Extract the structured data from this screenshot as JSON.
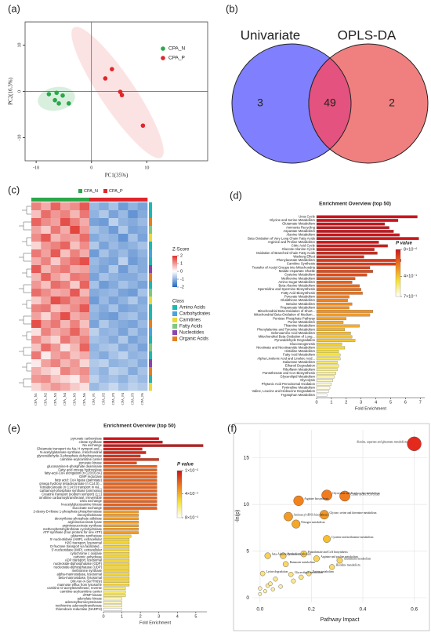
{
  "chart_data": [
    {
      "type": "scatter",
      "label": "(a)",
      "x_label": "PC1(35%)",
      "y_label": "PC2(16.3%)",
      "xlim": [
        -12,
        21
      ],
      "ylim": [
        -15,
        15
      ],
      "xticks": [
        -10,
        0,
        10
      ],
      "yticks": [
        -10,
        0,
        10
      ],
      "reference_lines": true,
      "series": [
        {
          "name": "CPA_N",
          "color": "#2aa84a",
          "x": [
            -7.7,
            -6.6,
            -5.9,
            -5.2,
            -4.1,
            -6.3
          ],
          "values": [
            -0.6,
            -1.9,
            -2.6,
            -0.9,
            -2.6,
            -0.3
          ]
        },
        {
          "name": "CPA_P",
          "color": "#e0262b",
          "x": [
            2.5,
            3.7,
            5.2,
            5.5,
            9.3
          ],
          "values": [
            2.8,
            4.8,
            -0.1,
            -0.8,
            -7.4
          ]
        }
      ]
    },
    {
      "type": "venn",
      "label": "(b)",
      "sets": [
        "Univariate",
        "OPLS-DA"
      ],
      "values": [
        3,
        49,
        2
      ],
      "colors": [
        "#8080ff",
        "#f08080"
      ],
      "overlap_color": "#e4527f"
    },
    {
      "type": "heatmap",
      "label": "(c)",
      "groups": [
        "CPA_N",
        "CPA_P"
      ],
      "group_colors": [
        "#2aa84a",
        "#e0262b"
      ],
      "columns": [
        "CPA_N1",
        "CPA_N2",
        "CPA_N3",
        "CPA_N4",
        "CPA_N5",
        "CPA_N6",
        "CPA_P1",
        "CPA_P2",
        "CPA_P3",
        "CPA_P4",
        "CPA_P5",
        "CPA_P6"
      ],
      "column_groups": [
        0,
        0,
        0,
        0,
        0,
        0,
        1,
        1,
        1,
        1,
        1,
        1
      ],
      "scale_title": "Z-Score",
      "zlim": [
        -2,
        2
      ],
      "zticks": [
        2,
        1,
        0,
        -1,
        -2
      ],
      "color_stops": [
        "#2166c0",
        "#ffffff",
        "#e0302a"
      ],
      "class_title": "Class",
      "classes": [
        "Amino Acids",
        "Carbohydrates",
        "Carnitines",
        "Fatty Acids",
        "Nucleotides",
        "Organic Acids"
      ],
      "class_colors": [
        "#1fb8b0",
        "#4aa3df",
        "#e9d93a",
        "#7fc97f",
        "#8e44ad",
        "#e67e22"
      ],
      "row_classes": [
        0,
        0,
        5,
        3,
        2,
        0,
        1,
        0,
        4,
        5,
        0,
        3,
        2,
        0,
        0,
        5,
        1,
        0,
        3,
        0,
        4,
        5,
        0,
        2
      ],
      "values": [
        [
          1.2,
          0.8,
          1.5,
          0.9,
          1.1,
          1.6,
          -0.9,
          -1.1,
          -0.8,
          -1.3,
          -1.0,
          -1.2
        ],
        [
          0.6,
          1.4,
          1.0,
          1.2,
          0.7,
          1.3,
          -1.0,
          -0.7,
          -1.2,
          -0.9,
          -1.4,
          -1.1
        ],
        [
          1.5,
          1.1,
          0.9,
          1.7,
          1.2,
          0.8,
          -1.2,
          -1.3,
          -0.6,
          -1.0,
          -1.1,
          -0.9
        ],
        [
          0.9,
          0.5,
          1.3,
          0.8,
          1.8,
          1.0,
          -0.8,
          -1.0,
          -1.3,
          -0.7,
          -1.2,
          -1.1
        ],
        [
          1.1,
          1.6,
          0.7,
          1.0,
          0.9,
          1.4,
          -1.1,
          -0.9,
          -1.0,
          -1.4,
          -0.8,
          -1.2
        ],
        [
          0.4,
          1.0,
          1.2,
          1.5,
          0.6,
          1.1,
          -0.7,
          -1.2,
          -0.9,
          -1.1,
          -1.0,
          -0.8
        ],
        [
          1.3,
          0.9,
          1.6,
          0.6,
          1.2,
          0.8,
          -1.3,
          -0.8,
          -1.1,
          -0.9,
          -1.2,
          -1.0
        ],
        [
          0.8,
          1.2,
          0.5,
          1.1,
          1.4,
          1.7,
          -0.9,
          -1.1,
          -1.2,
          -0.6,
          -1.3,
          -1.1
        ],
        [
          1.6,
          0.7,
          1.1,
          1.3,
          0.8,
          0.9,
          -1.0,
          -1.2,
          -0.7,
          -1.3,
          -0.9,
          -1.1
        ],
        [
          0.7,
          1.5,
          0.9,
          0.6,
          1.3,
          1.2,
          -1.2,
          -0.8,
          -1.0,
          -1.1,
          -1.1,
          -0.9
        ],
        [
          1.0,
          0.6,
          1.4,
          1.2,
          0.5,
          1.5,
          -0.8,
          -1.3,
          -1.1,
          -0.8,
          -1.0,
          -1.2
        ],
        [
          1.4,
          1.1,
          0.8,
          0.9,
          1.6,
          0.7,
          -1.1,
          -1.0,
          -0.9,
          -1.2,
          -1.3,
          -0.8
        ],
        [
          0.5,
          0.9,
          1.7,
          1.4,
          1.0,
          1.1,
          -1.3,
          -0.9,
          -1.2,
          -1.0,
          -0.7,
          -1.1
        ],
        [
          1.2,
          1.3,
          0.6,
          0.8,
          1.1,
          1.6,
          -0.9,
          -1.1,
          -0.8,
          -1.2,
          -1.1,
          -1.0
        ],
        [
          0.9,
          0.4,
          1.1,
          1.7,
          0.8,
          1.0,
          -1.0,
          -1.2,
          -1.3,
          -0.9,
          -0.8,
          -1.1
        ],
        [
          1.7,
          1.0,
          1.3,
          0.7,
          1.2,
          0.6,
          -1.2,
          -0.7,
          -1.0,
          -1.1,
          -1.2,
          -0.9
        ],
        [
          0.3,
          1.2,
          0.8,
          1.0,
          1.5,
          0.9,
          -0.6,
          -1.0,
          -0.9,
          -1.2,
          -0.8,
          -1.1
        ],
        [
          1.1,
          0.7,
          0.4,
          1.3,
          0.9,
          1.2,
          -0.8,
          -0.9,
          -1.1,
          -0.7,
          -1.2,
          -1.0
        ],
        [
          0.6,
          1.4,
          1.0,
          0.3,
          0.7,
          1.5,
          -1.0,
          -0.8,
          -0.7,
          -1.1,
          -0.9,
          -1.2
        ],
        [
          1.3,
          0.2,
          0.9,
          1.1,
          0.6,
          0.8,
          -0.9,
          -1.1,
          -0.8,
          -0.6,
          -1.0,
          -0.9
        ],
        [
          0.2,
          0.9,
          1.2,
          0.7,
          1.0,
          0.4,
          -0.7,
          -0.6,
          -1.0,
          -0.9,
          -0.8,
          -1.1
        ],
        [
          0.8,
          0.5,
          0.3,
          1.2,
          0.9,
          1.1,
          -0.8,
          -1.0,
          -0.6,
          -0.7,
          -1.1,
          -0.8
        ],
        [
          1.0,
          1.1,
          0.6,
          0.4,
          0.2,
          0.9,
          -0.6,
          -0.9,
          -0.8,
          -1.0,
          -0.7,
          -0.9
        ],
        [
          0.4,
          0.7,
          1.0,
          0.8,
          0.5,
          0.3,
          -0.9,
          -0.7,
          -0.5,
          -0.8,
          -0.6,
          -0.7
        ]
      ]
    },
    {
      "type": "hbar",
      "label": "(d)",
      "title": "Enrichment Overview (top 50)",
      "x_label": "Fold Enrichment",
      "xlim": [
        0,
        7.3
      ],
      "xticks": [
        0,
        1,
        2,
        3,
        4,
        5,
        6,
        7
      ],
      "scale_title": "P value",
      "clim": [
        8e-06,
        0.7
      ],
      "cticks": [
        {
          "value": 8e-06,
          "label": "8×10⁻⁶"
        },
        {
          "value": 0.4,
          "label": "4×10⁻¹"
        },
        {
          "value": 0.7,
          "label": "7×10⁻¹"
        }
      ],
      "color_stops": [
        "#c8161d",
        "#f07f1e",
        "#f4e13a",
        "#ffffff"
      ],
      "categories": [
        "Urea Cycle",
        "Glycine and Serine Metabolism",
        "Glutamate Metabolism",
        "Ammonia Recycling",
        "Aspartate Metabolism",
        "Alanine Metabolism",
        "Beta Oxidation of Very Long Chain Fatty Acids",
        "Arginine and Proline Metabolism",
        "Citric Acid Cycle",
        "Glucose-Alanine Cycle",
        "Oxidation of Branched Chain Fatty Acids",
        "Warburg Effect",
        "Phenylacetate Metabolism",
        "Carnitine Synthesis",
        "Transfer of Acetyl Groups into Mitochondria",
        "Malate-Aspartate Shuttle",
        "Cysteine Metabolism",
        "Methionine Metabolism",
        "Amino Sugar Metabolism",
        "Beta-Alanine Metabolism",
        "Spermidine and Spermine Biosynthesis",
        "Fatty Acid Biosynthesis",
        "Pyruvate Metabolism",
        "Glutathione Metabolism",
        "Betaine Metabolism",
        "Propanoate Metabolism",
        "Mitochondrial Beta-Oxidation of Short...",
        "Mitochondrial Beta-Oxidation of Medium...",
        "Pentose Phosphate Pathway",
        "Purine Metabolism",
        "Thiamine Metabolism",
        "Phenylalanine and Tyrosine Metabolism",
        "Selenoamino Acid Metabolism",
        "Mitochondrial Beta-Oxidation of Long...",
        "Pyruvaldehyde Degradation",
        "Gluconeogenesis",
        "Nicotinate and Nicotinamide Metabolism",
        "Histidine Metabolism",
        "Fatty Acid Metabolism",
        "Alpha Linolenic Acid and Linoleic Acid...",
        "Galactose Metabolism",
        "Ethanol Degradation",
        "Riboflavin Metabolism",
        "Pantothenate and CoA Biosynthesis",
        "Glycerolipid Metabolism",
        "Glycolysis",
        "Phytanic Acid Peroxisomal Oxidation",
        "Pyrimidine Metabolism",
        "Valine, Leucine and Isoleucine Degradation",
        "Tryptophan Metabolism"
      ],
      "values": [
        6.8,
        5.5,
        4.6,
        4.9,
        5.2,
        5.6,
        6.9,
        4.2,
        4.8,
        3.9,
        4.1,
        3.2,
        5.7,
        5.6,
        3.6,
        3.8,
        3.4,
        2.6,
        2.4,
        2.9,
        3.0,
        3.1,
        2.2,
        2.1,
        2.4,
        2.2,
        3.8,
        3.6,
        2.0,
        1.8,
        2.9,
        1.9,
        2.3,
        2.4,
        2.6,
        1.7,
        1.9,
        1.5,
        1.6,
        1.6,
        1.4,
        1.5,
        1.4,
        1.3,
        1.2,
        1.1,
        1.0,
        0.9,
        0.8,
        0.7
      ],
      "p_values": [
        1e-05,
        0.0001,
        0.001,
        0.002,
        0.003,
        0.005,
        0.008,
        0.01,
        0.02,
        0.03,
        0.04,
        0.06,
        0.08,
        0.09,
        0.1,
        0.12,
        0.13,
        0.15,
        0.17,
        0.18,
        0.2,
        0.21,
        0.23,
        0.24,
        0.26,
        0.27,
        0.28,
        0.3,
        0.31,
        0.33,
        0.34,
        0.36,
        0.37,
        0.39,
        0.4,
        0.42,
        0.44,
        0.46,
        0.48,
        0.5,
        0.52,
        0.54,
        0.56,
        0.58,
        0.6,
        0.62,
        0.64,
        0.66,
        0.68,
        0.7
      ]
    },
    {
      "type": "hbar",
      "label": "(e)",
      "title": "Enrichment Overview (top 50)",
      "x_label": "Fold Enrichment",
      "xlim": [
        0,
        5.6
      ],
      "xticks": [
        0,
        1,
        2,
        3,
        4,
        5
      ],
      "scale_title": "P value",
      "clim": [
        0.01,
        0.8
      ],
      "cticks": [
        {
          "value": 0.01,
          "label": "1×10⁻²"
        },
        {
          "value": 0.4,
          "label": "4×10⁻¹"
        },
        {
          "value": 0.8,
          "label": "8×10⁻¹"
        }
      ],
      "color_stops": [
        "#c8161d",
        "#f07f1e",
        "#f4e13a",
        "#ffffff"
      ],
      "categories": [
        "pyruvate carboxylase",
        "citrate synthase",
        "Na exchange",
        "Glutamate transport via Na, H symport and...",
        "N-acetylglutamate synthase, mitochondrial",
        "glyceraldehyde-3-phosphate dehydrogenase",
        "carnitine-acylcarnitine carrier",
        "pyruvate kinase",
        "glucosamine-6-phosphate deaminase",
        "Fatty acid omega hydroxylase",
        "fatty-acyl-CoA elongation (n C20:0CoA)",
        "GMP reductase",
        "fatty acid: CoA ligase (palmitate)",
        "omega hydroxy tetradecanoate (n C14:0)...",
        "Tetradecanoate (n C14:0) transport in via...",
        "carbamoyl-phosphate synthase (ammonia)",
        "Creatine transport (sodium symport) (1:1)",
        "ornithine carbamoyltransferase, irreversible",
        "Urea exchange",
        "N-acetylglucosamine kinase",
        "Succinate exchange",
        "2-deoxy-D-ribose 1-phosphate phosphomutase",
        "Deoxyribokinase",
        "deoxyribose-phosphate aldolase",
        "argininosuccinate lyase",
        "argininosuccinate synthase",
        "methenyltetrahydrofolate cyclohydrolase",
        "ATP synthase (four protons for one ATP)",
        "glutamine synthetase",
        "5'-nucleotidase (AMP), extracellular",
        "H2O transport, lysosomal",
        "D-fructose transport via facilitated...",
        "5'-nucleotidase (IMP), extracellular",
        "cytochrome c oxidase",
        "carbonic anhydrase",
        "ADP transport, lysosomal",
        "nucleoside-diphosphatase (GDP)",
        "nucleoside-diphosphatase (UDP)",
        "methionine synthase",
        "alpha-mannosidase, lysosomal",
        "beta-mannosidase, lysosomal",
        "DM Asn-X-Ser/Thr(ly)",
        "mannose efflux from lysosome",
        "carnitine O-acetyltransferase, reverse",
        "carnitine-acylcarnitine carrier",
        "dTMP kinase",
        "adenylate kinase",
        "adenosylhomocysteinase",
        "methionine adenosyltransferase",
        "thioredoxin reductase (NADPH)"
      ],
      "values": [
        3.0,
        3.2,
        5.4,
        2.1,
        2.3,
        2.0,
        3.0,
        1.8,
        2.9,
        2.9,
        2.9,
        2.9,
        2.9,
        2.9,
        2.9,
        2.9,
        2.9,
        2.9,
        2.9,
        2.9,
        2.9,
        1.9,
        1.9,
        1.9,
        1.9,
        1.9,
        1.9,
        1.9,
        1.5,
        1.4,
        1.4,
        1.4,
        1.4,
        1.4,
        1.4,
        1.4,
        1.4,
        1.4,
        1.4,
        1.4,
        1.4,
        1.4,
        1.4,
        1.2,
        1.2,
        1.2,
        1.0,
        1.0,
        1.0,
        1.0
      ],
      "p_values": [
        0.01,
        0.01,
        0.02,
        0.05,
        0.06,
        0.08,
        0.1,
        0.15,
        0.2,
        0.2,
        0.2,
        0.2,
        0.2,
        0.2,
        0.2,
        0.2,
        0.2,
        0.2,
        0.2,
        0.2,
        0.2,
        0.35,
        0.35,
        0.35,
        0.35,
        0.35,
        0.35,
        0.35,
        0.5,
        0.5,
        0.5,
        0.5,
        0.5,
        0.5,
        0.5,
        0.5,
        0.5,
        0.5,
        0.5,
        0.5,
        0.5,
        0.5,
        0.5,
        0.6,
        0.6,
        0.6,
        0.7,
        0.7,
        0.7,
        0.8
      ]
    },
    {
      "type": "bubble",
      "label": "(f)",
      "x_label": "Pathway Impact",
      "y_label": "-ln(p)",
      "xlim": [
        -0.03,
        0.65
      ],
      "ylim": [
        -0.5,
        18
      ],
      "xticks": [
        {
          "value": 0,
          "label": "0.0"
        },
        0.2,
        0.4,
        0.6
      ],
      "yticks": [
        0,
        5,
        10,
        15
      ],
      "grid": true,
      "color_stops": [
        "#fff8c0",
        "#f7c22e",
        "#ef6c1a",
        "#e0141c"
      ],
      "x": [
        0.6,
        0.26,
        0.33,
        0.15,
        0.25,
        0.11,
        0.14,
        0.26,
        0.17,
        0.09,
        0.22,
        0.31,
        0.03,
        0.1,
        0.28,
        0.01,
        0.12,
        0.19,
        0.06,
        0.04,
        0.0,
        0.02,
        0.08,
        0.0,
        0.05,
        0.13,
        0.16,
        0.03
      ],
      "values": [
        16.5,
        11.0,
        10.9,
        10.4,
        8.9,
        8.7,
        7.9,
        6.3,
        4.7,
        4.5,
        4.2,
        4.0,
        4.5,
        3.6,
        3.3,
        2.6,
        2.5,
        2.6,
        2.0,
        1.5,
        1.0,
        0.7,
        1.2,
        0.4,
        0.9,
        1.8,
        2.2,
        1.3
      ],
      "labels": [
        "Alanine, aspartate and glutamate metabolism",
        "Glyoxylate and dicarboxylate metabolism",
        "Citrate cycle (TCA cycle)",
        "Arginine biosynthesis",
        "Glycine, serine and threonine metabolism",
        "Aminoacyl-tRNA biosynthesis",
        "Nitrogen metabolism",
        "Cysteine and methionine metabolism",
        "Pantothenate and CoA biosynthesis",
        "Pyruvate metabolism",
        "Arginine and proline metabolism",
        "Glutathione metabolism",
        "beta-Alanine metabolism",
        "Butanoate metabolism",
        "Histidine metabolism",
        "Lysine degradation",
        "Glycerolipid metabolism",
        "Purine metabolism",
        null,
        null,
        null,
        null,
        null,
        null,
        null,
        null,
        null,
        null
      ]
    }
  ]
}
